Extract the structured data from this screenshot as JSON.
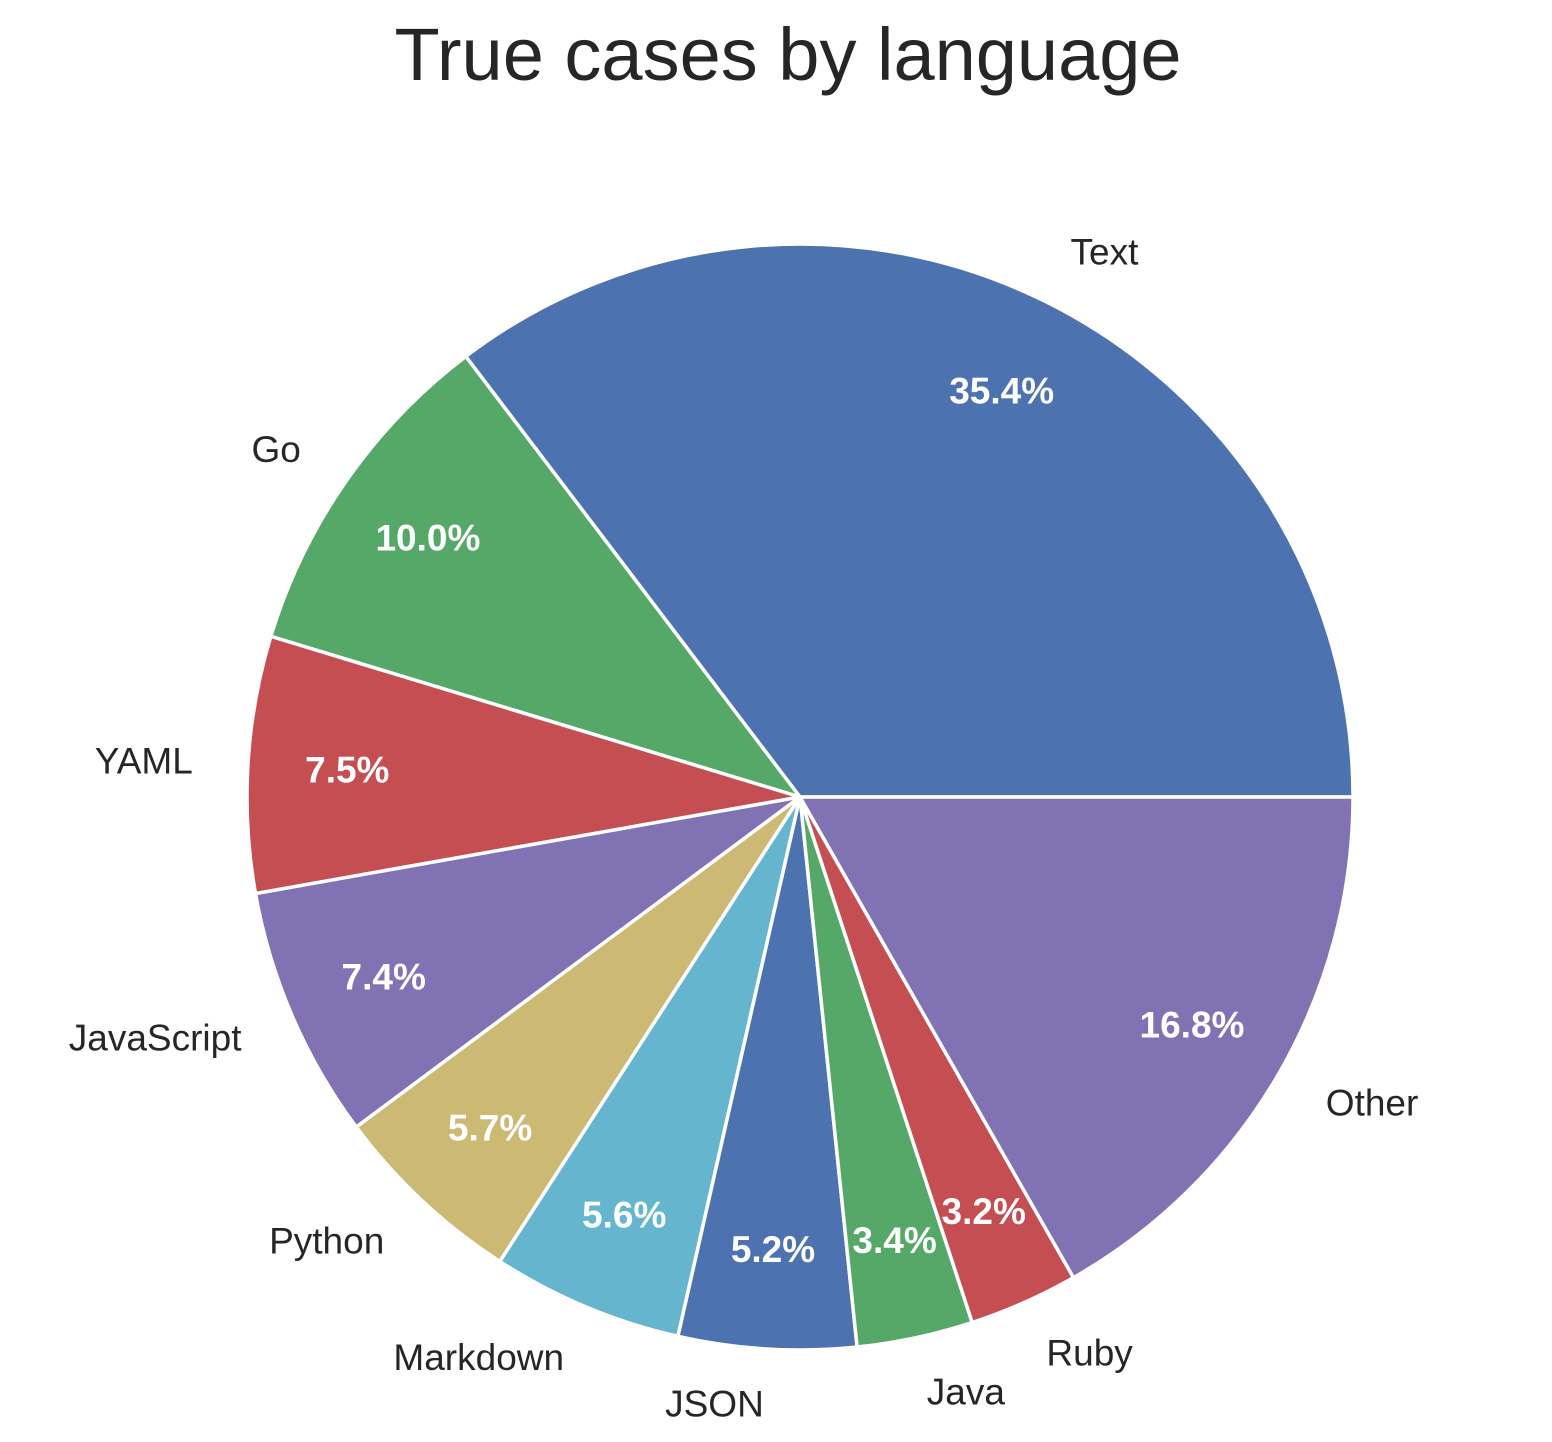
{
  "chart_data": {
    "type": "pie",
    "title": "True cases by language",
    "start_angle_deg": 0,
    "direction": "counterclockwise",
    "slices": [
      {
        "label": "Text",
        "value": 35.4,
        "pct_label": "35.4%",
        "color": "#4c72b0"
      },
      {
        "label": "Go",
        "value": 10.0,
        "pct_label": "10.0%",
        "color": "#55a868"
      },
      {
        "label": "YAML",
        "value": 7.5,
        "pct_label": "7.5%",
        "color": "#c44e52"
      },
      {
        "label": "JavaScript",
        "value": 7.4,
        "pct_label": "7.4%",
        "color": "#8172b3"
      },
      {
        "label": "Python",
        "value": 5.7,
        "pct_label": "5.7%",
        "color": "#ccb974"
      },
      {
        "label": "Markdown",
        "value": 5.6,
        "pct_label": "5.6%",
        "color": "#64b5cd"
      },
      {
        "label": "JSON",
        "value": 5.2,
        "pct_label": "5.2%",
        "color": "#4c72b0"
      },
      {
        "label": "Java",
        "value": 3.4,
        "pct_label": "3.4%",
        "color": "#55a868"
      },
      {
        "label": "Ruby",
        "value": 3.2,
        "pct_label": "3.2%",
        "color": "#c44e52"
      },
      {
        "label": "Other",
        "value": 16.8,
        "pct_label": "16.8%",
        "color": "#8172b3"
      }
    ]
  }
}
